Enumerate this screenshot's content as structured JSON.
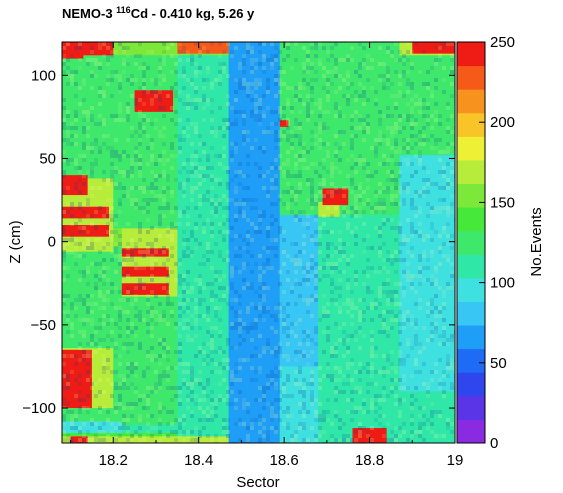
{
  "chart_data": {
    "type": "heatmap",
    "title": {
      "prefix": "NEMO-3 ",
      "superscript": "116",
      "suffix": "Cd - 0.410 kg, 5.26 y"
    },
    "xlabel": "Sector",
    "ylabel": "Z (cm)",
    "colorbar_label": "No.Events",
    "xlim": [
      18.08,
      19.0
    ],
    "ylim": [
      -121,
      120
    ],
    "x_ticks": [
      {
        "value": 18.2,
        "label": "18.2"
      },
      {
        "value": 18.4,
        "label": "18.4"
      },
      {
        "value": 18.6,
        "label": "18.6"
      },
      {
        "value": 18.8,
        "label": "18.8"
      },
      {
        "value": 19.0,
        "label": "19"
      }
    ],
    "y_ticks": [
      {
        "value": 100,
        "label": "100"
      },
      {
        "value": 50,
        "label": "50"
      },
      {
        "value": 0,
        "label": "0"
      },
      {
        "value": -50,
        "label": "−50"
      },
      {
        "value": -100,
        "label": "−100"
      }
    ],
    "z_range": [
      0,
      250
    ],
    "z_ticks": [
      {
        "value": 0,
        "label": "0"
      },
      {
        "value": 50,
        "label": "50"
      },
      {
        "value": 100,
        "label": "100"
      },
      {
        "value": 150,
        "label": "150"
      },
      {
        "value": 200,
        "label": "200"
      },
      {
        "value": 250,
        "label": "250"
      }
    ],
    "color_scale": [
      "#8a2be2",
      "#5a35e8",
      "#2f46ef",
      "#1e6bf5",
      "#1e9ef7",
      "#38c6f5",
      "#3fe0e0",
      "#2fe8a8",
      "#3ee86a",
      "#46e83a",
      "#7be83a",
      "#b8ec3a",
      "#eef036",
      "#f8c428",
      "#f8921e",
      "#f55a19",
      "#ee1c14"
    ],
    "background_level": 130,
    "columns": [
      {
        "x": [
          18.08,
          18.22
        ],
        "z": 130
      },
      {
        "x": [
          18.22,
          18.35
        ],
        "z": 125
      },
      {
        "x": [
          18.35,
          18.47
        ],
        "z": 115
      },
      {
        "x": [
          18.47,
          18.59
        ],
        "z": 70
      },
      {
        "x": [
          18.59,
          18.68
        ],
        "z": 75
      },
      {
        "x": [
          18.68,
          18.87
        ],
        "z": 112
      },
      {
        "x": [
          18.87,
          19.0
        ],
        "z": 95
      }
    ],
    "regions": [
      {
        "x": [
          18.59,
          18.68
        ],
        "y": [
          16,
          120
        ],
        "z": 128
      },
      {
        "x": [
          18.59,
          18.68
        ],
        "y": [
          -121,
          -75
        ],
        "z": 100
      },
      {
        "x": [
          18.68,
          18.87
        ],
        "y": [
          16,
          120
        ],
        "z": 128
      },
      {
        "x": [
          18.87,
          19.0
        ],
        "y": [
          52,
          120
        ],
        "z": 125
      },
      {
        "x": [
          18.87,
          19.0
        ],
        "y": [
          -121,
          -90
        ],
        "z": 110
      },
      {
        "x": [
          18.08,
          18.22
        ],
        "y": [
          -121,
          -108
        ],
        "z": 95
      },
      {
        "x": [
          18.22,
          18.35
        ],
        "y": [
          -121,
          -110
        ],
        "z": 110
      },
      {
        "x": [
          18.08,
          18.47
        ],
        "y": [
          112,
          120
        ],
        "z": 160
      },
      {
        "x": [
          18.87,
          19.0
        ],
        "y": [
          112,
          120
        ],
        "z": 175
      },
      {
        "x": [
          18.08,
          18.12
        ],
        "y": [
          32,
          40
        ],
        "z": 205
      },
      {
        "x": [
          18.08,
          18.12
        ],
        "y": [
          -88,
          -64
        ],
        "z": 185
      },
      {
        "x": [
          18.08,
          18.12
        ],
        "y": [
          -100,
          -94
        ],
        "z": 195
      },
      {
        "x": [
          18.68,
          18.73
        ],
        "y": [
          15,
          24
        ],
        "z": 165
      },
      {
        "x": [
          18.16,
          18.35
        ],
        "y": [
          -3,
          8
        ],
        "z": 160
      },
      {
        "x": [
          18.08,
          18.2
        ],
        "y": [
          -6,
          38
        ],
        "z": 175
      },
      {
        "x": [
          18.22,
          18.35
        ],
        "y": [
          -33,
          8
        ],
        "z": 170
      },
      {
        "x": [
          18.08,
          18.2
        ],
        "y": [
          -100,
          -64
        ],
        "z": 175
      },
      {
        "x": [
          18.08,
          18.35
        ],
        "y": [
          -121,
          -115
        ],
        "z": 140
      },
      {
        "x": [
          18.08,
          18.47
        ],
        "y": [
          -121,
          -117
        ],
        "z": 175
      },
      {
        "x": [
          18.08,
          18.13
        ],
        "y": [
          110,
          120
        ],
        "z": 245
      },
      {
        "x": [
          18.09,
          18.2
        ],
        "y": [
          112,
          120
        ],
        "z": 245
      },
      {
        "x": [
          18.35,
          18.47
        ],
        "y": [
          113,
          120
        ],
        "z": 235
      },
      {
        "x": [
          18.9,
          19.0
        ],
        "y": [
          113,
          120
        ],
        "z": 245
      },
      {
        "x": [
          18.25,
          18.34
        ],
        "y": [
          78,
          91
        ],
        "z": 245
      },
      {
        "x": [
          18.08,
          18.15
        ],
        "y": [
          -100,
          -65
        ],
        "z": 245
      },
      {
        "x": [
          18.08,
          18.14
        ],
        "y": [
          28,
          40
        ],
        "z": 245
      },
      {
        "x": [
          18.08,
          18.19
        ],
        "y": [
          14,
          21
        ],
        "z": 245
      },
      {
        "x": [
          18.08,
          18.19
        ],
        "y": [
          3,
          10
        ],
        "z": 245
      },
      {
        "x": [
          18.22,
          18.33
        ],
        "y": [
          -9,
          -4
        ],
        "z": 245
      },
      {
        "x": [
          18.22,
          18.33
        ],
        "y": [
          -21,
          -15
        ],
        "z": 245
      },
      {
        "x": [
          18.22,
          18.33
        ],
        "y": [
          -32,
          -25
        ],
        "z": 245
      },
      {
        "x": [
          18.69,
          18.75
        ],
        "y": [
          22,
          32
        ],
        "z": 245
      },
      {
        "x": [
          18.76,
          18.84
        ],
        "y": [
          -121,
          -112
        ],
        "z": 245
      },
      {
        "x": [
          18.1,
          18.14
        ],
        "y": [
          -121,
          -117
        ],
        "z": 245
      },
      {
        "x": [
          18.59,
          18.61
        ],
        "y": [
          69,
          73
        ],
        "z": 250
      }
    ]
  }
}
